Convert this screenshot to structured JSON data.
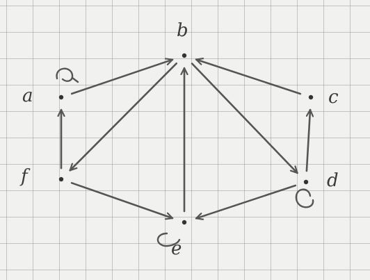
{
  "diagram": {
    "type": "directed-graph",
    "nodes": [
      {
        "id": "a",
        "label": "a",
        "self_loop": true
      },
      {
        "id": "b",
        "label": "b",
        "self_loop": false
      },
      {
        "id": "c",
        "label": "c",
        "self_loop": false
      },
      {
        "id": "d",
        "label": "d",
        "self_loop": true
      },
      {
        "id": "e",
        "label": "e",
        "self_loop": true
      },
      {
        "id": "f",
        "label": "f",
        "self_loop": false
      }
    ],
    "edges": [
      {
        "from": "a",
        "to": "b"
      },
      {
        "from": "c",
        "to": "b"
      },
      {
        "from": "e",
        "to": "b"
      },
      {
        "from": "b",
        "to": "f"
      },
      {
        "from": "b",
        "to": "d"
      },
      {
        "from": "f",
        "to": "a"
      },
      {
        "from": "d",
        "to": "c"
      },
      {
        "from": "f",
        "to": "e"
      },
      {
        "from": "d",
        "to": "e"
      }
    ],
    "colors": {
      "ink": "#555555",
      "grid": "#8c8c8c",
      "paper": "#f1f1ef"
    }
  }
}
